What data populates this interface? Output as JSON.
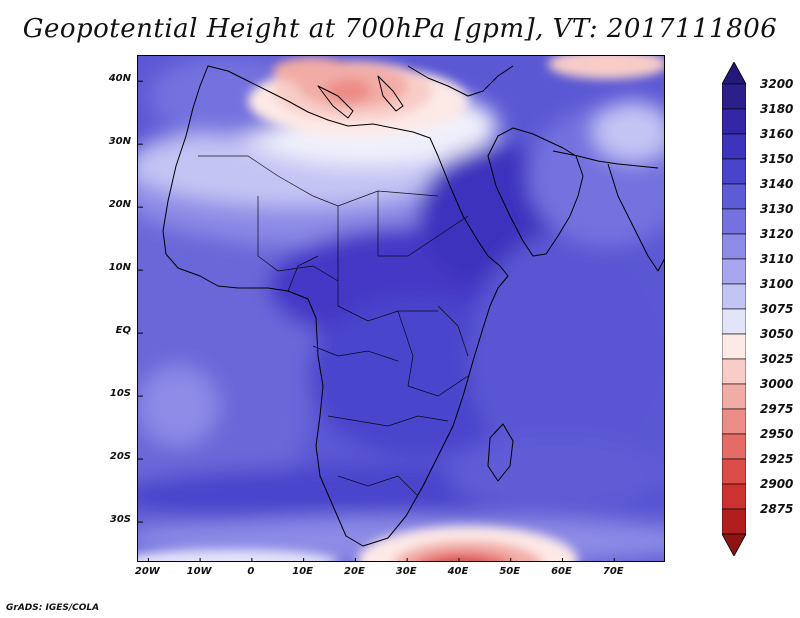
{
  "title": "Geopotential Height at 700hPa [gpm], VT: 2017111806",
  "credit": "GrADS: IGES/COLA",
  "map": {
    "lon_range": [
      -22,
      80
    ],
    "lat_range": [
      -36.5,
      44
    ],
    "lon_ticks": [
      {
        "value": -20,
        "label": "20W"
      },
      {
        "value": -10,
        "label": "10W"
      },
      {
        "value": 0,
        "label": "0"
      },
      {
        "value": 10,
        "label": "10E"
      },
      {
        "value": 20,
        "label": "20E"
      },
      {
        "value": 30,
        "label": "30E"
      },
      {
        "value": 40,
        "label": "40E"
      },
      {
        "value": 50,
        "label": "50E"
      },
      {
        "value": 60,
        "label": "60E"
      },
      {
        "value": 70,
        "label": "70E"
      }
    ],
    "lat_ticks": [
      {
        "value": 40,
        "label": "40N"
      },
      {
        "value": 30,
        "label": "30N"
      },
      {
        "value": 20,
        "label": "20N"
      },
      {
        "value": 10,
        "label": "10N"
      },
      {
        "value": 0,
        "label": "EQ"
      },
      {
        "value": -10,
        "label": "10S"
      },
      {
        "value": -20,
        "label": "20S"
      },
      {
        "value": -30,
        "label": "30S"
      }
    ]
  },
  "colorbar": {
    "levels": [
      {
        "label": "3200",
        "color": "#2b1f8c"
      },
      {
        "label": "3180",
        "color": "#3426a6"
      },
      {
        "label": "3160",
        "color": "#3d33bd"
      },
      {
        "label": "3150",
        "color": "#4a44cc"
      },
      {
        "label": "3140",
        "color": "#5e5bd6"
      },
      {
        "label": "3130",
        "color": "#7572df"
      },
      {
        "label": "3120",
        "color": "#8d8be6"
      },
      {
        "label": "3110",
        "color": "#a7a6ee"
      },
      {
        "label": "3100",
        "color": "#c4c4f4"
      },
      {
        "label": "3075",
        "color": "#e3e3fa"
      },
      {
        "label": "3050",
        "color": "#fde9e6"
      },
      {
        "label": "3025",
        "color": "#f8cdc8"
      },
      {
        "label": "3000",
        "color": "#f2aca6"
      },
      {
        "label": "2975",
        "color": "#ec8c86"
      },
      {
        "label": "2950",
        "color": "#e56b66"
      },
      {
        "label": "2925",
        "color": "#dc4c48"
      },
      {
        "label": "2900",
        "color": "#cc3230"
      },
      {
        "label": "2875",
        "color": "#b01e1e"
      }
    ],
    "top_color": "#241878",
    "bottom_color": "#8e1414"
  }
}
